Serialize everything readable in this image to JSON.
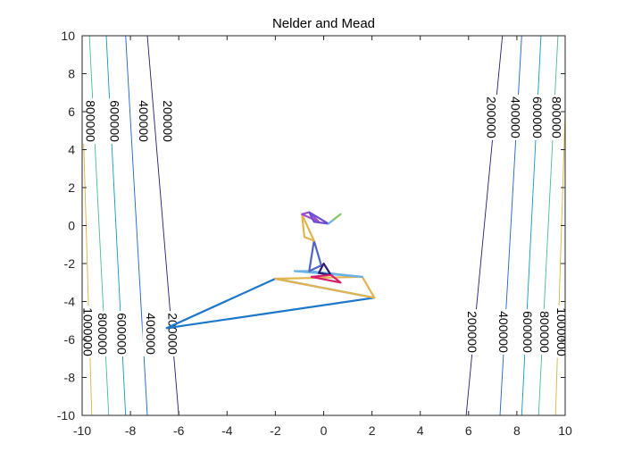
{
  "chart_data": {
    "type": "line",
    "title": "Nelder and Mead",
    "xlabel": "",
    "ylabel": "",
    "xlim": [
      -10,
      10
    ],
    "ylim": [
      -10,
      10
    ],
    "x_ticks": [
      -10,
      -8,
      -6,
      -4,
      -2,
      0,
      2,
      4,
      6,
      8,
      10
    ],
    "y_ticks": [
      -10,
      -8,
      -6,
      -4,
      -2,
      0,
      2,
      4,
      6,
      8,
      10
    ],
    "grid": false,
    "contours": [
      {
        "level": 200000,
        "label": "200000",
        "color": "#2a1a6e",
        "left": [
          [
            -7.3,
            10
          ],
          [
            -6.0,
            -10
          ]
        ],
        "right": [
          [
            5.9,
            -10
          ],
          [
            7.4,
            10
          ]
        ]
      },
      {
        "level": 400000,
        "label": "400000",
        "color": "#1f62c8",
        "left": [
          [
            -8.2,
            10
          ],
          [
            -7.3,
            -10
          ]
        ],
        "right": [
          [
            7.3,
            -10
          ],
          [
            8.2,
            10
          ]
        ]
      },
      {
        "level": 600000,
        "label": "600000",
        "color": "#0f99c1",
        "left": [
          [
            -9.0,
            10
          ],
          [
            -8.2,
            -10
          ]
        ],
        "right": [
          [
            8.2,
            -10
          ],
          [
            9.0,
            10
          ]
        ]
      },
      {
        "level": 800000,
        "label": "800000",
        "color": "#4eb98d",
        "left": [
          [
            -9.7,
            10
          ],
          [
            -8.9,
            -10
          ]
        ],
        "right": [
          [
            8.9,
            -10
          ],
          [
            9.7,
            10
          ]
        ]
      },
      {
        "level": 1000000,
        "label": "1000000",
        "color": "#d8b43e",
        "left": [
          [
            -10.0,
            7.0
          ],
          [
            -9.6,
            -10
          ]
        ],
        "right": [
          [
            9.6,
            -10
          ],
          [
            10.0,
            6.0
          ]
        ]
      }
    ],
    "contour_label_positions": [
      {
        "level": "200000",
        "x": -6.5,
        "y": 5.5
      },
      {
        "level": "400000",
        "x": -7.5,
        "y": 5.5
      },
      {
        "level": "600000",
        "x": -8.7,
        "y": 5.5
      },
      {
        "level": "800000",
        "x": -9.7,
        "y": 5.5
      },
      {
        "level": "200000",
        "x": -6.3,
        "y": -5.7
      },
      {
        "level": "400000",
        "x": -7.2,
        "y": -5.7
      },
      {
        "level": "600000",
        "x": -8.4,
        "y": -5.7
      },
      {
        "level": "800000",
        "x": -9.2,
        "y": -5.7
      },
      {
        "level": "1000000",
        "x": -9.8,
        "y": -5.6
      },
      {
        "level": "200000",
        "x": 6.9,
        "y": 5.7
      },
      {
        "level": "400000",
        "x": 7.9,
        "y": 5.7
      },
      {
        "level": "600000",
        "x": 8.8,
        "y": 5.7
      },
      {
        "level": "800000",
        "x": 9.6,
        "y": 5.7
      },
      {
        "level": "200000",
        "x": 6.1,
        "y": -5.6
      },
      {
        "level": "400000",
        "x": 7.4,
        "y": -5.6
      },
      {
        "level": "600000",
        "x": 8.4,
        "y": -5.6
      },
      {
        "level": "800000",
        "x": 9.1,
        "y": -5.6
      },
      {
        "level": "1000000",
        "x": 9.8,
        "y": -5.6
      }
    ],
    "series": [
      {
        "color": "#1b77c9",
        "points": [
          [
            -6.5,
            -5.4
          ],
          [
            -2.0,
            -2.8
          ],
          [
            2.1,
            -3.8
          ],
          [
            -6.5,
            -5.4
          ]
        ]
      },
      {
        "color": "#e2b44f",
        "points": [
          [
            -2.0,
            -2.8
          ],
          [
            1.6,
            -2.7
          ],
          [
            2.1,
            -3.8
          ],
          [
            -2.0,
            -2.8
          ]
        ]
      },
      {
        "color": "#6ab1e6",
        "points": [
          [
            -1.2,
            -2.4
          ],
          [
            -0.6,
            -2.4
          ],
          [
            1.6,
            -2.7
          ],
          [
            -1.2,
            -2.4
          ]
        ]
      },
      {
        "color": "#5063c7",
        "points": [
          [
            -0.6,
            -2.4
          ],
          [
            -0.1,
            -2.1
          ],
          [
            -0.4,
            -0.8
          ],
          [
            -0.6,
            -2.4
          ]
        ]
      },
      {
        "color": "#2a1a6e",
        "points": [
          [
            -0.2,
            -2.5
          ],
          [
            0.3,
            -2.6
          ],
          [
            0.0,
            -2.0
          ],
          [
            -0.2,
            -2.5
          ]
        ]
      },
      {
        "color": "#e2b44f",
        "points": [
          [
            -0.4,
            -0.8
          ],
          [
            -0.9,
            0.6
          ],
          [
            -0.8,
            -0.6
          ],
          [
            -0.4,
            -0.8
          ]
        ]
      },
      {
        "color": "#d51f6c",
        "points": [
          [
            0.3,
            -2.6
          ],
          [
            0.7,
            -3.0
          ],
          [
            -0.5,
            -2.7
          ],
          [
            0.3,
            -2.6
          ]
        ]
      },
      {
        "color": "#a24ccc",
        "points": [
          [
            -0.9,
            0.6
          ],
          [
            -0.6,
            0.7
          ],
          [
            -0.2,
            0.2
          ],
          [
            -0.9,
            0.6
          ]
        ]
      },
      {
        "color": "#6c4fd0",
        "points": [
          [
            -0.6,
            0.7
          ],
          [
            -0.4,
            0.2
          ],
          [
            0.2,
            0.1
          ],
          [
            -0.6,
            0.7
          ]
        ]
      },
      {
        "color": "#6ab1e6",
        "points": [
          [
            0.2,
            0.1
          ],
          [
            0.5,
            0.4
          ],
          [
            0.3,
            0.2
          ],
          [
            0.2,
            0.1
          ]
        ]
      },
      {
        "color": "#88c566",
        "points": [
          [
            0.5,
            0.4
          ],
          [
            0.7,
            0.6
          ],
          [
            0.4,
            0.3
          ],
          [
            0.5,
            0.4
          ]
        ]
      }
    ]
  }
}
